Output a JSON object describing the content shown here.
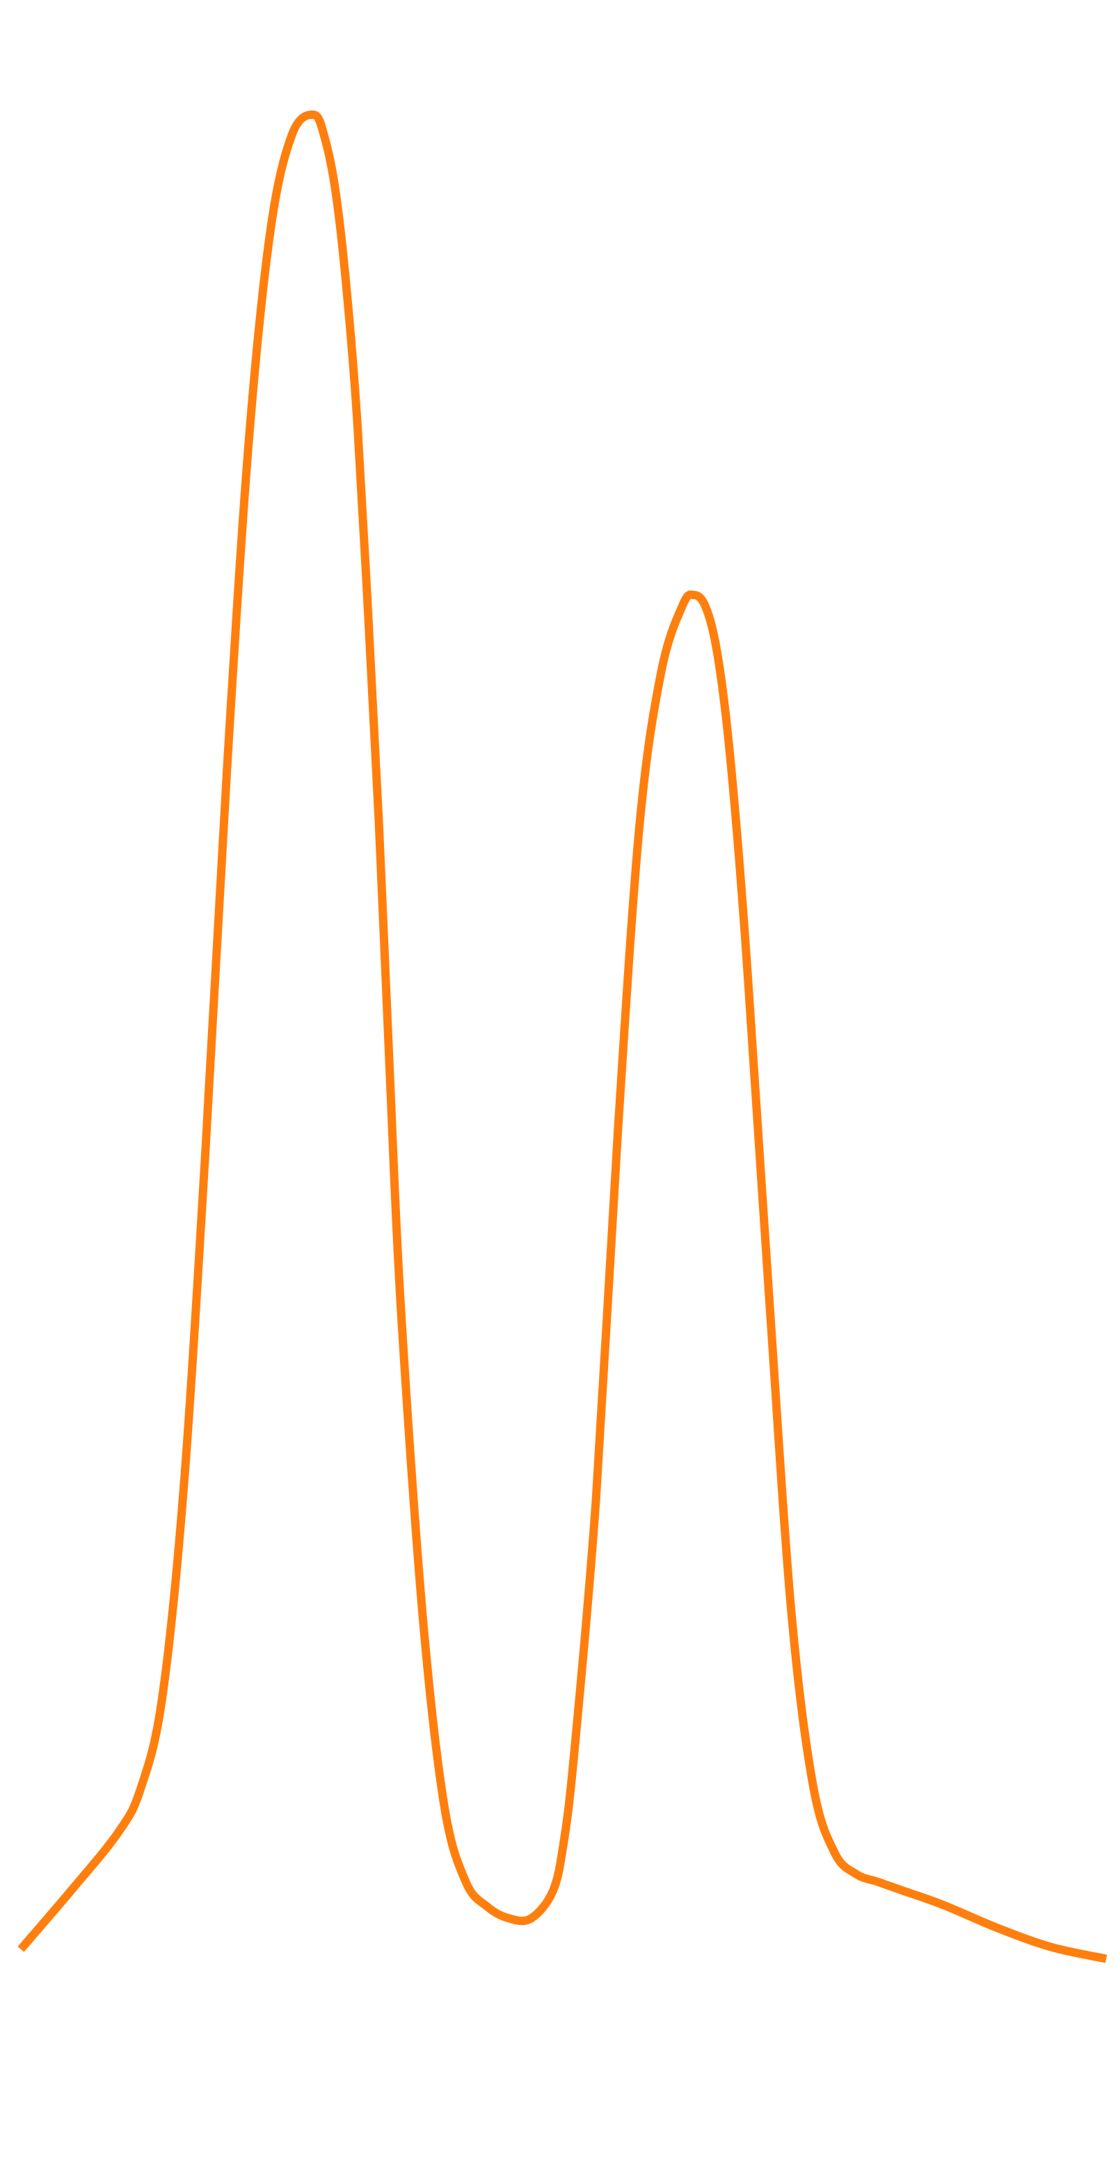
{
  "chart_data": {
    "type": "line",
    "title": "",
    "xlabel": "",
    "ylabel": "",
    "grid": false,
    "legend": "none",
    "axes_visible": false,
    "xlim": [
      0,
      100
    ],
    "ylim": [
      0,
      100
    ],
    "series": [
      {
        "color": "#ff7f0e",
        "x": [
          0,
          5,
          9,
          11,
          13,
          15,
          17,
          19,
          21,
          23,
          25,
          27,
          28,
          29,
          30,
          31,
          32,
          33,
          34,
          35,
          37,
          39,
          41,
          43,
          45,
          47,
          49,
          50,
          51,
          53,
          55,
          57,
          59,
          61,
          62,
          63,
          64,
          65,
          66,
          67,
          69,
          71,
          73,
          75,
          77,
          79,
          81,
          85,
          90,
          95,
          100
        ],
        "y": [
          4.5,
          7.8,
          10.6,
          12.8,
          17.5,
          28.5,
          46.0,
          66.0,
          83.0,
          94.0,
          99.0,
          100.0,
          98.8,
          96.0,
          91.0,
          84.0,
          74.0,
          63.0,
          50.0,
          38.0,
          22.0,
          12.0,
          8.0,
          6.7,
          6.1,
          6.1,
          7.5,
          10.0,
          14.8,
          28.0,
          47.0,
          63.0,
          71.0,
          74.5,
          75.0,
          74.5,
          72.5,
          68.5,
          62.5,
          55.0,
          38.0,
          22.0,
          13.0,
          9.5,
          8.4,
          8.0,
          7.6,
          6.8,
          5.6,
          4.6,
          4.0
        ]
      }
    ]
  }
}
